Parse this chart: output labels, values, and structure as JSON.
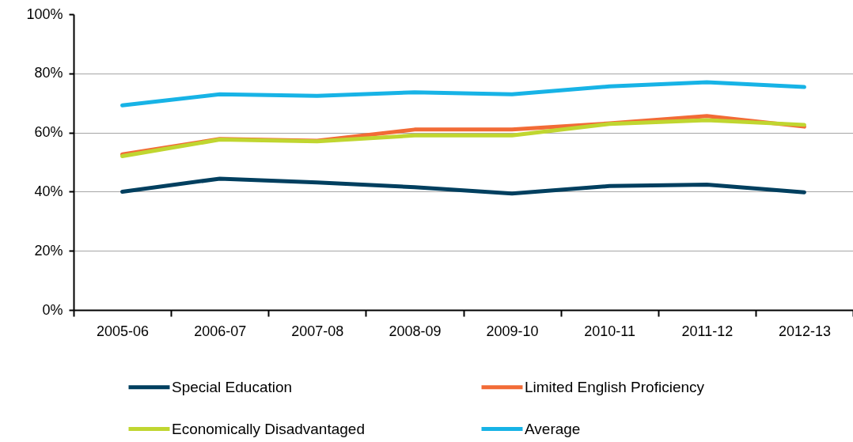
{
  "chart_data": {
    "type": "line",
    "categories": [
      "2005-06",
      "2006-07",
      "2007-08",
      "2008-09",
      "2009-10",
      "2010-11",
      "2011-12",
      "2012-13"
    ],
    "series": [
      {
        "name": "Special Education",
        "color": "#003f5f",
        "values": [
          40,
          44.4,
          43.1,
          41.5,
          39.4,
          41.9,
          42.4,
          39.8
        ]
      },
      {
        "name": "Limited English Proficiency",
        "color": "#f26b36",
        "values": [
          52.6,
          57.8,
          57.2,
          61,
          61,
          63.1,
          65.6,
          62
        ]
      },
      {
        "name": "Economically Disadvantaged",
        "color": "#c0d630",
        "values": [
          52,
          57.6,
          57,
          59,
          59,
          62.9,
          64.2,
          62.6
        ]
      },
      {
        "name": "Average",
        "color": "#17b3e6",
        "values": [
          69.2,
          72.9,
          72.4,
          73.6,
          72.9,
          75.6,
          77,
          75.4
        ]
      }
    ],
    "ylim": [
      0,
      100
    ],
    "yticks": [
      {
        "value": 0,
        "label": "0%"
      },
      {
        "value": 20,
        "label": "20%"
      },
      {
        "value": 40,
        "label": "40%"
      },
      {
        "value": 60,
        "label": "60%"
      },
      {
        "value": 80,
        "label": "80%"
      },
      {
        "value": 100,
        "label": "100%"
      }
    ],
    "grid": "y",
    "legend": "bottom",
    "marker": "none",
    "line_style": "solid"
  }
}
